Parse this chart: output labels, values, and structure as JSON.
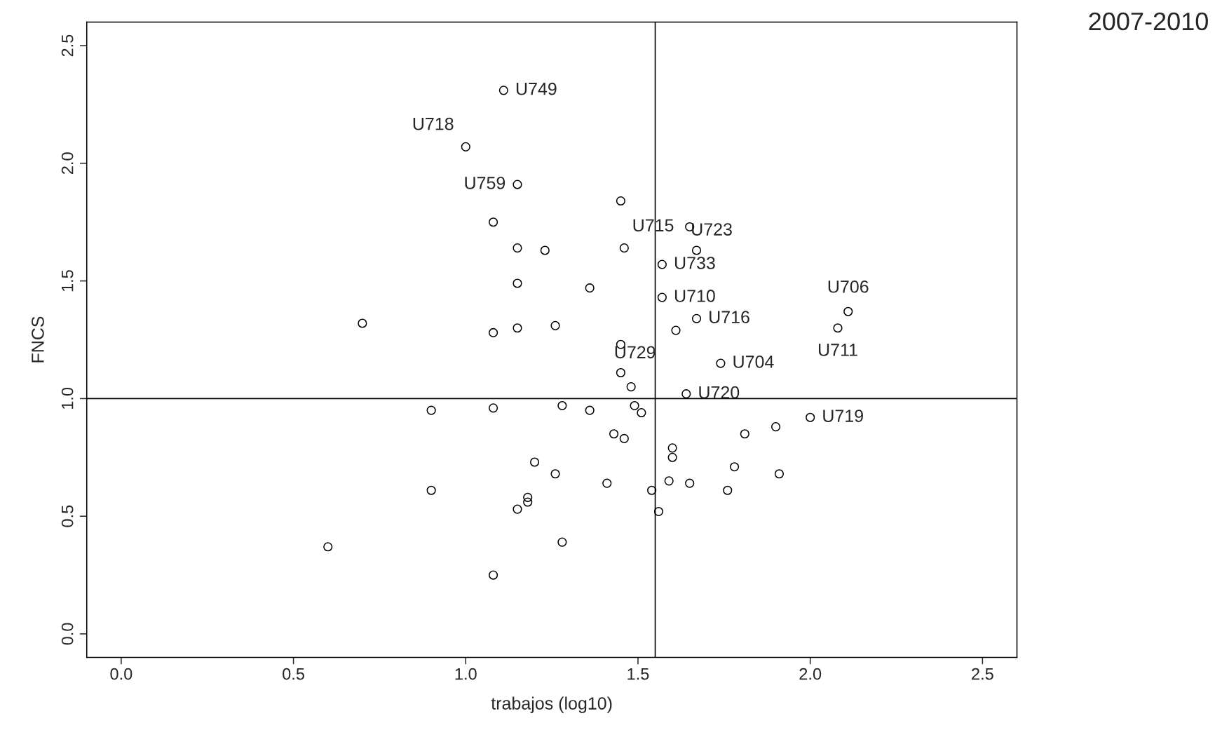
{
  "chart_data": {
    "type": "scatter",
    "title": "2007-2010",
    "xlabel": "trabajos (log10)",
    "ylabel": "FNCS",
    "xlim": [
      -0.1,
      2.6
    ],
    "ylim": [
      -0.1,
      2.6
    ],
    "xticks": [
      {
        "value": 0,
        "label": "0.0"
      },
      0.5,
      {
        "value": 1,
        "label": "1.0"
      },
      1.5,
      {
        "value": 2,
        "label": "2.0"
      },
      2.5
    ],
    "yticks": [
      {
        "value": 0,
        "label": "0.0"
      },
      0.5,
      {
        "value": 1,
        "label": "1.0"
      },
      1.5,
      {
        "value": 2,
        "label": "2.0"
      },
      2.5
    ],
    "grid": false,
    "marker": "circle",
    "series": [
      {
        "color": "#000000",
        "x": [
          1.11,
          1.0,
          1.15,
          1.45,
          1.08,
          1.65,
          1.15,
          1.23,
          1.46,
          1.67,
          1.57,
          1.15,
          1.36,
          1.57,
          2.11,
          1.67,
          0.7,
          2.08,
          1.26,
          1.08,
          1.15,
          1.61,
          1.45,
          1.74,
          1.45,
          1.48,
          1.64,
          0.9,
          1.08,
          1.28,
          1.36,
          1.49,
          1.51,
          2.0,
          1.9,
          1.43,
          1.46,
          1.81,
          1.6,
          1.6,
          1.2,
          1.78,
          1.26,
          1.91,
          0.9,
          1.41,
          1.59,
          1.65,
          1.54,
          1.76,
          1.18,
          1.18,
          1.15,
          1.56,
          0.6,
          1.28,
          1.08
        ],
        "values": [
          2.31,
          2.07,
          1.91,
          1.84,
          1.75,
          1.73,
          1.64,
          1.63,
          1.64,
          1.63,
          1.57,
          1.49,
          1.47,
          1.43,
          1.37,
          1.34,
          1.32,
          1.3,
          1.31,
          1.28,
          1.3,
          1.29,
          1.23,
          1.15,
          1.11,
          1.05,
          1.02,
          0.95,
          0.96,
          0.97,
          0.95,
          0.97,
          0.94,
          0.92,
          0.88,
          0.85,
          0.83,
          0.85,
          0.79,
          0.75,
          0.73,
          0.71,
          0.68,
          0.68,
          0.61,
          0.64,
          0.65,
          0.64,
          0.61,
          0.61,
          0.58,
          0.56,
          0.53,
          0.52,
          0.37,
          0.39,
          0.25
        ]
      }
    ],
    "ref_lines": [
      {
        "axis": "x",
        "value": 1.55,
        "color": "#000000"
      },
      {
        "axis": "y",
        "value": 1.0,
        "color": "#000000"
      }
    ],
    "annotations": [
      {
        "text": "U749",
        "x": 1.11,
        "y": 2.31
      },
      {
        "text": "U718",
        "x": 1.0,
        "y": 2.07
      },
      {
        "text": "U759",
        "x": 1.15,
        "y": 1.91
      },
      {
        "text": "U715",
        "x": 1.65,
        "y": 1.73
      },
      {
        "text": "U723",
        "x": 1.67,
        "y": 1.63
      },
      {
        "text": "U733",
        "x": 1.57,
        "y": 1.57
      },
      {
        "text": "U710",
        "x": 1.57,
        "y": 1.43
      },
      {
        "text": "U706",
        "x": 2.11,
        "y": 1.37
      },
      {
        "text": "U716",
        "x": 1.67,
        "y": 1.34
      },
      {
        "text": "U711",
        "x": 2.08,
        "y": 1.3
      },
      {
        "text": "U729",
        "x": 1.61,
        "y": 1.29
      },
      {
        "text": "U704",
        "x": 1.74,
        "y": 1.15
      },
      {
        "text": "U720",
        "x": 1.64,
        "y": 1.02
      },
      {
        "text": "U719",
        "x": 2.0,
        "y": 0.92
      }
    ]
  }
}
